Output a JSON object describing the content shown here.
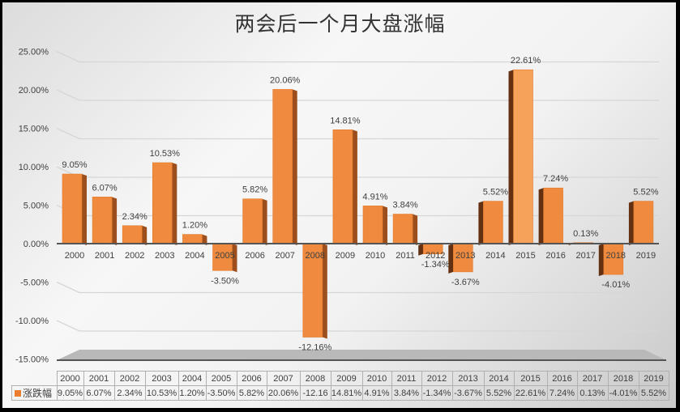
{
  "chart_data": {
    "type": "bar",
    "title": "两会后一个月大盘涨幅",
    "xlabel": "",
    "ylabel": "",
    "ylim": [
      -0.15,
      0.25
    ],
    "y_ticks": [
      "25.00%",
      "20.00%",
      "15.00%",
      "10.00%",
      "5.00%",
      "0.00%",
      "-5.00%",
      "-10.00%",
      "-15.00%"
    ],
    "grid": true,
    "style": "3d-column",
    "legend_position": "data-table",
    "categories": [
      "2000",
      "2001",
      "2002",
      "2003",
      "2004",
      "2005",
      "2006",
      "2007",
      "2008",
      "2009",
      "2010",
      "2011",
      "2012",
      "2013",
      "2014",
      "2015",
      "2016",
      "2017",
      "2018",
      "2019"
    ],
    "series": [
      {
        "name": "涨跌幅",
        "color": "#ed7d31",
        "values": [
          9.05,
          6.07,
          2.34,
          10.53,
          1.2,
          -3.5,
          5.82,
          20.06,
          -12.16,
          14.81,
          4.91,
          3.84,
          -1.34,
          -3.67,
          5.52,
          22.61,
          7.24,
          0.13,
          -4.01,
          5.52
        ],
        "labels": [
          "9.05%",
          "6.07%",
          "2.34%",
          "10.53%",
          "1.20%",
          "-3.50%",
          "5.82%",
          "20.06%",
          "-12.16%",
          "14.81%",
          "4.91%",
          "3.84%",
          "-1.34%",
          "-3.67%",
          "5.52%",
          "22.61%",
          "7.24%",
          "0.13%",
          "-4.01%",
          "5.52%"
        ]
      }
    ]
  },
  "data_table": {
    "legend_label": "涨跌幅",
    "cells": [
      "9.05%",
      "6.07%",
      "2.34%",
      "10.53%",
      "1.20%",
      "-3.50%",
      "5.82%",
      "20.06%",
      "-12.16",
      "14.81%",
      "4.91%",
      "3.84%",
      "-1.34%",
      "-3.67%",
      "5.52%",
      "22.61%",
      "7.24%",
      "0.13%",
      "-4.01%",
      "5.52%"
    ]
  }
}
